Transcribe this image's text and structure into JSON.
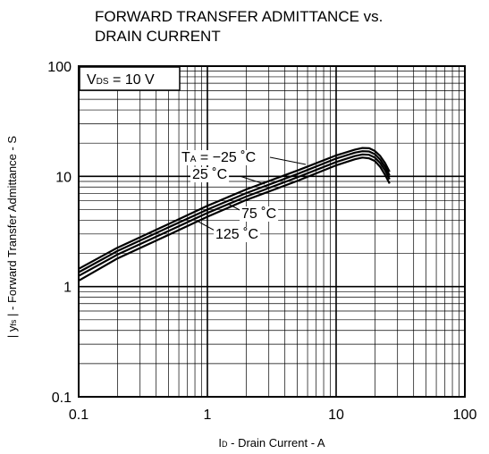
{
  "chart_data": {
    "type": "line",
    "title_lines": [
      "FORWARD TRANSFER ADMITTANCE vs.",
      "DRAIN CURRENT"
    ],
    "xlabel": {
      "main": "I",
      "sub": "D",
      "rest": " - Drain Current - A"
    },
    "ylabel": {
      "pre": "| y",
      "sub": "fs",
      "rest": " | - Forward Transfer Admittance - S"
    },
    "x_scale": "log",
    "y_scale": "log",
    "xlim": [
      0.1,
      100
    ],
    "ylim": [
      0.1,
      100
    ],
    "x_ticks": [
      {
        "v": 0.1,
        "label": "0.1"
      },
      {
        "v": 1,
        "label": "1"
      },
      {
        "v": 10,
        "label": "10"
      },
      {
        "v": 100,
        "label": "100"
      }
    ],
    "y_ticks": [
      {
        "v": 0.1,
        "label": "0.1"
      },
      {
        "v": 1,
        "label": "1"
      },
      {
        "v": 10,
        "label": "10"
      },
      {
        "v": 100,
        "label": "100"
      }
    ],
    "grid": true,
    "condition": {
      "main": "V",
      "sub": "DS",
      "rest": " = 10 V"
    },
    "series": [
      {
        "name": "Tₐ = −25 ˚C",
        "label_main": "T",
        "label_sub": "A",
        "label_rest": " = −25 ˚C",
        "x": [
          0.1,
          0.2,
          0.5,
          1,
          2,
          5,
          10,
          14,
          16,
          18,
          20,
          22,
          24,
          26
        ],
        "y": [
          1.45,
          2.25,
          3.7,
          5.4,
          7.6,
          11.3,
          15.5,
          17.5,
          18.1,
          18.0,
          17.0,
          15.3,
          13.2,
          11.0
        ]
      },
      {
        "name": "25 ˚C",
        "label_main": "25 ˚C",
        "label_sub": "",
        "label_rest": "",
        "x": [
          0.1,
          0.2,
          0.5,
          1,
          2,
          5,
          10,
          14,
          16,
          18,
          20,
          22,
          24,
          26
        ],
        "y": [
          1.35,
          2.1,
          3.45,
          5.0,
          7.05,
          10.5,
          14.5,
          16.4,
          16.9,
          16.8,
          15.9,
          14.2,
          12.2,
          10.2
        ]
      },
      {
        "name": "75 ˚C",
        "label_main": "75 ˚C",
        "label_sub": "",
        "label_rest": "",
        "x": [
          0.1,
          0.2,
          0.5,
          1,
          2,
          5,
          10,
          14,
          16,
          18,
          20,
          22,
          24,
          26
        ],
        "y": [
          1.25,
          1.95,
          3.2,
          4.65,
          6.55,
          9.8,
          13.5,
          15.3,
          15.8,
          15.7,
          14.8,
          13.2,
          11.3,
          9.4
        ]
      },
      {
        "name": "125 ˚C",
        "label_main": "125 ˚C",
        "label_sub": "",
        "label_rest": "",
        "x": [
          0.1,
          0.2,
          0.5,
          1,
          2,
          5,
          10,
          14,
          16,
          18,
          20,
          22,
          24,
          26
        ],
        "y": [
          1.13,
          1.8,
          2.95,
          4.3,
          6.1,
          9.1,
          12.6,
          14.3,
          14.8,
          14.6,
          13.8,
          12.2,
          10.3,
          8.6
        ]
      }
    ]
  }
}
